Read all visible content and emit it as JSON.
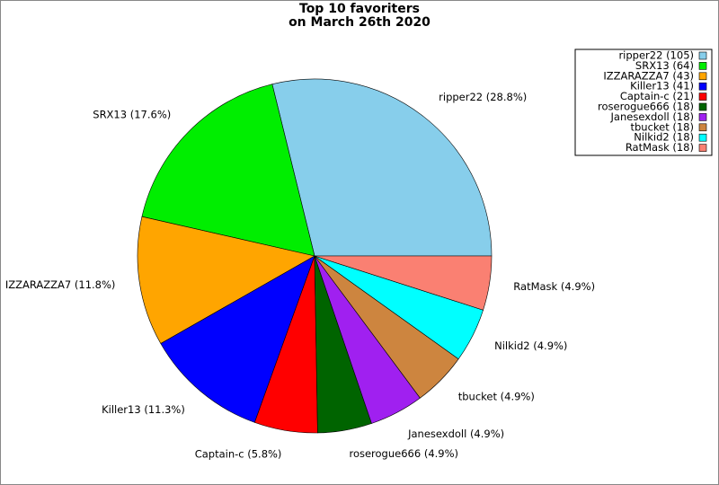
{
  "chart_data": {
    "type": "pie",
    "title": "Top 10 favoriters",
    "subtitle": "on March 26th 2020",
    "categories": [
      "ripper22",
      "SRX13",
      "IZZARAZZA7",
      "Killer13",
      "Captain-c",
      "roserogue666",
      "Janesexdoll",
      "tbucket",
      "Nilkid2",
      "RatMask"
    ],
    "values": [
      105,
      64,
      43,
      41,
      21,
      18,
      18,
      18,
      18,
      18
    ],
    "slice_labels": [
      "ripper22 (28.8%)",
      "SRX13 (17.6%)",
      "IZZARAZZA7 (11.8%)",
      "Killer13 (11.3%)",
      "Captain-c (5.8%)",
      "roserogue666 (4.9%)",
      "Janesexdoll (4.9%)",
      "tbucket (4.9%)",
      "Nilkid2 (4.9%)",
      "RatMask (4.9%)"
    ],
    "legend_labels": [
      "ripper22 (105)",
      "SRX13 (64)",
      "IZZARAZZA7 (43)",
      "Killer13 (41)",
      "Captain-c (21)",
      "roserogue666 (18)",
      "Janesexdoll (18)",
      "tbucket (18)",
      "Nilkid2 (18)",
      "RatMask (18)"
    ],
    "colors": [
      "#87ceeb",
      "#00ee00",
      "#ffa500",
      "#0000ff",
      "#ff0000",
      "#006400",
      "#a020f0",
      "#cd853f",
      "#00ffff",
      "#fa8072"
    ],
    "legend": "upper right"
  }
}
